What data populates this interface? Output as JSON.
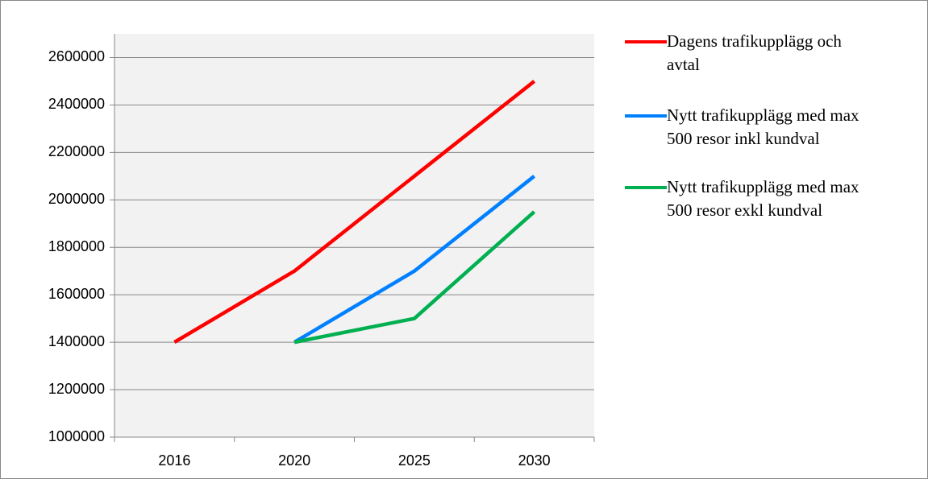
{
  "chart_data": {
    "type": "line",
    "categories": [
      "2016",
      "2020",
      "2025",
      "2030"
    ],
    "series": [
      {
        "name": "Dagens trafikupplägg och avtal",
        "color": "#ff0000",
        "values": [
          1400000,
          1700000,
          2100000,
          2500000
        ]
      },
      {
        "name": "Nytt trafikupplägg med max 500 resor inkl kundval",
        "color": "#0080ff",
        "values": [
          null,
          1400000,
          1700000,
          2100000
        ]
      },
      {
        "name": "Nytt trafikupplägg med max 500 resor exkl kundval",
        "color": "#00b050",
        "values": [
          null,
          1400000,
          1500000,
          1950000
        ]
      }
    ],
    "ylim": [
      1000000,
      2700000
    ],
    "yticks": [
      1000000,
      1200000,
      1400000,
      1600000,
      1800000,
      2000000,
      2200000,
      2400000,
      2600000
    ],
    "grid": true,
    "legend": "right"
  }
}
